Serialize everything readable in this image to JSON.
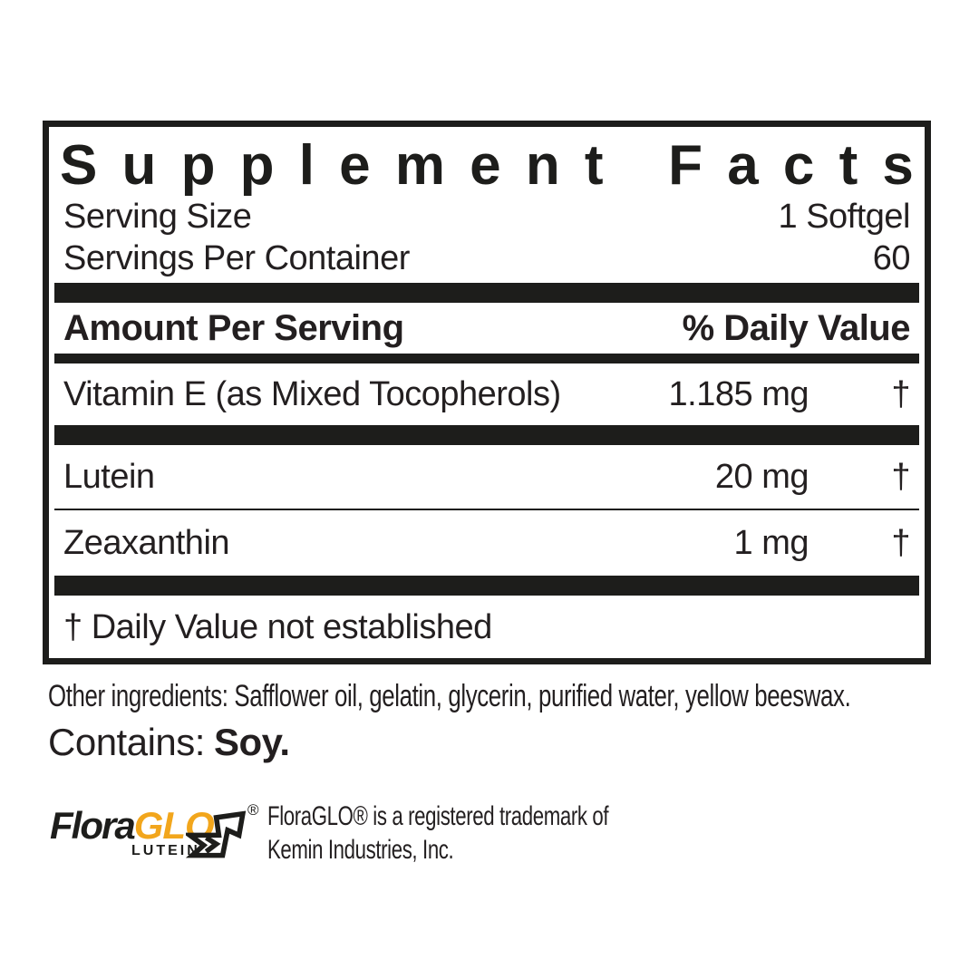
{
  "panel": {
    "title": "Supplement Facts",
    "serving_size_label": "Serving Size",
    "serving_size_value": "1 Softgel",
    "servings_per_container_label": "Servings Per Container",
    "servings_per_container_value": "60",
    "col_amount": "Amount Per Serving",
    "col_daily_value": "% Daily Value",
    "rows": [
      {
        "name": "Vitamin E (as Mixed Tocopherols)",
        "amount": "1.185 mg",
        "dv": "†"
      },
      {
        "name": "Lutein",
        "amount": "20 mg",
        "dv": "†"
      },
      {
        "name": "Zeaxanthin",
        "amount": "1 mg",
        "dv": "†"
      }
    ],
    "footnote": "† Daily Value not established"
  },
  "other_ingredients": {
    "text": "Other ingredients: Safflower oil, gelatin, glycerin, purified water, yellow beeswax."
  },
  "contains": {
    "label": "Contains:",
    "value": "Soy."
  },
  "logo": {
    "flora": "Flora",
    "glo": "GLO",
    "lutein": "LUTEIN",
    "registered": "®",
    "glo_color": "#F2A61C",
    "outline_color": "#1d1d1b"
  },
  "trademark": {
    "line1": "FloraGLO® is a registered trademark of",
    "line2": "Kemin Industries, Inc."
  }
}
